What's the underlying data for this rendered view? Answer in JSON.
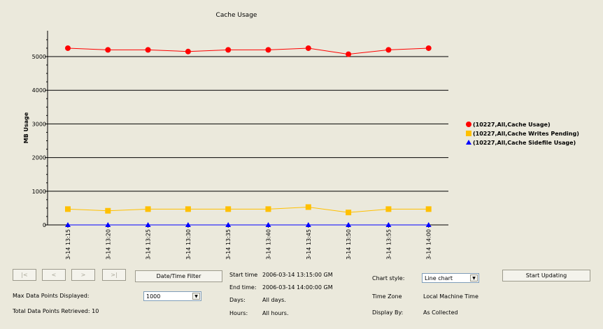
{
  "chart_data": {
    "type": "line",
    "title": "Cache Usage",
    "ylabel": "MB Usage",
    "xlabel": "",
    "ylim": [
      0,
      5500
    ],
    "yticks": [
      0,
      1000,
      2000,
      3000,
      4000,
      5000
    ],
    "categories": [
      "3-14 13:15",
      "3-14 13:20",
      "3-14 13:25",
      "3-14 13:30",
      "3-14 13:35",
      "3-14 13:40",
      "3-14 13:45",
      "3-14 13:50",
      "3-14 13:55",
      "3-14 14:00"
    ],
    "grid": true,
    "legend_position": "right",
    "series": [
      {
        "name": "(10227,All,Cache Usage)",
        "color": "#ff0000",
        "marker": "circle",
        "values": [
          5250,
          5200,
          5200,
          5150,
          5200,
          5200,
          5250,
          5070,
          5200,
          5250
        ]
      },
      {
        "name": "(10227,All,Cache Writes Pending)",
        "color": "#ffc000",
        "marker": "square",
        "values": [
          470,
          420,
          470,
          470,
          470,
          470,
          530,
          370,
          470,
          470
        ]
      },
      {
        "name": "(10227,All,Cache Sidefile Usage)",
        "color": "#0000ff",
        "marker": "triangle",
        "values": [
          0,
          0,
          0,
          0,
          0,
          0,
          0,
          0,
          0,
          0
        ]
      }
    ]
  },
  "nav": {
    "first": "|<",
    "prev": "<",
    "next": ">",
    "last": ">|"
  },
  "date_filter_label": "Date/Time Filter",
  "start_updating_label": "Start Updating",
  "max_points_label": "Max Data Points Displayed:",
  "max_points_value": "1000",
  "total_points_label": "Total Data Points Retrieved: 10",
  "info": {
    "start_time_label": "Start time",
    "start_time_value": "2006-03-14 13:15:00 GM",
    "end_time_label": "End time:",
    "end_time_value": "2006-03-14 14:00:00 GM",
    "days_label": "Days:",
    "days_value": "All days.",
    "hours_label": "Hours:",
    "hours_value": "All hours."
  },
  "chart_style_label": "Chart style:",
  "chart_style_value": "Line chart",
  "time_zone_label": "Time Zone",
  "time_zone_value": "Local Machine Time",
  "display_by_label": "Display By:",
  "display_by_value": "As Collected"
}
